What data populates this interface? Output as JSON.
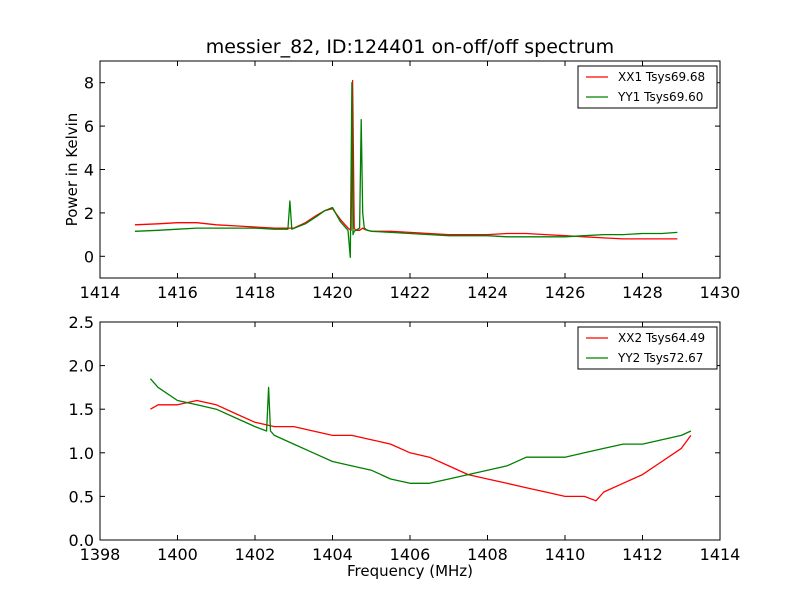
{
  "title": "messier_82, ID:124401 on-off/off spectrum",
  "chart_data": [
    {
      "type": "line",
      "title": "messier_82, ID:124401 on-off/off spectrum",
      "xlabel": "",
      "ylabel": "Power in Kelvin",
      "xlim": [
        1414,
        1430
      ],
      "ylim": [
        -1,
        9
      ],
      "xticks": [
        "1414",
        "1416",
        "1418",
        "1420",
        "1422",
        "1424",
        "1426",
        "1428",
        "1430"
      ],
      "yticks": [
        "0",
        "2",
        "4",
        "6",
        "8"
      ],
      "legend_position": "top-right",
      "series": [
        {
          "name": "XX1 Tsys69.68",
          "color": "#ff0000",
          "x": [
            1414.9,
            1415.5,
            1416.0,
            1416.5,
            1417.0,
            1417.5,
            1418.0,
            1418.5,
            1419.0,
            1419.3,
            1419.6,
            1419.8,
            1420.0,
            1420.2,
            1420.4,
            1420.48,
            1420.52,
            1420.56,
            1420.6,
            1420.7,
            1420.74,
            1420.78,
            1420.82,
            1420.9,
            1421.0,
            1421.5,
            1422.0,
            1422.5,
            1423.0,
            1423.5,
            1424.0,
            1424.5,
            1425.0,
            1425.5,
            1426.0,
            1426.5,
            1427.0,
            1427.5,
            1428.0,
            1428.5,
            1428.9
          ],
          "y": [
            1.45,
            1.5,
            1.55,
            1.55,
            1.45,
            1.4,
            1.35,
            1.3,
            1.3,
            1.55,
            1.9,
            2.1,
            2.2,
            1.7,
            1.3,
            1.2,
            8.1,
            1.3,
            1.2,
            1.2,
            1.25,
            1.3,
            1.25,
            1.2,
            1.15,
            1.15,
            1.1,
            1.05,
            1.0,
            1.0,
            1.0,
            1.05,
            1.05,
            1.0,
            0.95,
            0.9,
            0.85,
            0.8,
            0.8,
            0.8,
            0.8
          ]
        },
        {
          "name": "YY1 Tsys69.60",
          "color": "#008000",
          "x": [
            1414.9,
            1415.5,
            1416.0,
            1416.5,
            1417.0,
            1417.5,
            1418.0,
            1418.5,
            1418.85,
            1418.9,
            1418.95,
            1419.3,
            1419.6,
            1419.8,
            1420.0,
            1420.2,
            1420.4,
            1420.46,
            1420.5,
            1420.53,
            1420.56,
            1420.6,
            1420.7,
            1420.74,
            1420.78,
            1420.82,
            1420.9,
            1421.0,
            1421.5,
            1422.0,
            1422.5,
            1423.0,
            1423.5,
            1424.0,
            1424.5,
            1425.0,
            1425.5,
            1426.0,
            1426.5,
            1427.0,
            1427.5,
            1428.0,
            1428.5,
            1428.9
          ],
          "y": [
            1.15,
            1.2,
            1.25,
            1.3,
            1.3,
            1.3,
            1.3,
            1.25,
            1.25,
            2.55,
            1.25,
            1.5,
            1.85,
            2.1,
            2.25,
            1.6,
            1.2,
            -0.05,
            8.0,
            1.0,
            1.15,
            1.2,
            1.3,
            6.3,
            2.0,
            1.3,
            1.2,
            1.15,
            1.1,
            1.05,
            1.0,
            0.95,
            0.95,
            0.95,
            0.9,
            0.9,
            0.9,
            0.9,
            0.95,
            1.0,
            1.0,
            1.05,
            1.05,
            1.1
          ]
        }
      ]
    },
    {
      "type": "line",
      "title": "",
      "xlabel": "Frequency (MHz)",
      "ylabel": "",
      "xlim": [
        1398,
        1414
      ],
      "ylim": [
        0,
        2.5
      ],
      "xticks": [
        "1398",
        "1400",
        "1402",
        "1404",
        "1406",
        "1408",
        "1410",
        "1412",
        "1414"
      ],
      "yticks": [
        "0.0",
        "0.5",
        "1.0",
        "1.5",
        "2.0",
        "2.5"
      ],
      "legend_position": "top-right",
      "series": [
        {
          "name": "XX2 Tsys64.49",
          "color": "#ff0000",
          "x": [
            1399.3,
            1399.5,
            1400.0,
            1400.5,
            1401.0,
            1401.5,
            1402.0,
            1402.5,
            1403.0,
            1403.5,
            1404.0,
            1404.5,
            1405.0,
            1405.5,
            1406.0,
            1406.5,
            1407.0,
            1407.5,
            1408.0,
            1408.5,
            1409.0,
            1409.5,
            1410.0,
            1410.5,
            1410.8,
            1411.0,
            1411.5,
            1412.0,
            1412.5,
            1413.0,
            1413.25
          ],
          "y": [
            1.5,
            1.55,
            1.55,
            1.6,
            1.55,
            1.45,
            1.35,
            1.3,
            1.3,
            1.25,
            1.2,
            1.2,
            1.15,
            1.1,
            1.0,
            0.95,
            0.85,
            0.75,
            0.7,
            0.65,
            0.6,
            0.55,
            0.5,
            0.5,
            0.45,
            0.55,
            0.65,
            0.75,
            0.9,
            1.05,
            1.2
          ]
        },
        {
          "name": "YY2 Tsys72.67",
          "color": "#008000",
          "x": [
            1399.3,
            1399.5,
            1400.0,
            1400.5,
            1401.0,
            1401.5,
            1402.0,
            1402.3,
            1402.35,
            1402.4,
            1402.5,
            1403.0,
            1403.5,
            1404.0,
            1404.5,
            1405.0,
            1405.5,
            1406.0,
            1406.5,
            1407.0,
            1407.5,
            1408.0,
            1408.5,
            1409.0,
            1409.5,
            1410.0,
            1410.5,
            1411.0,
            1411.5,
            1412.0,
            1412.5,
            1413.0,
            1413.25
          ],
          "y": [
            1.85,
            1.75,
            1.6,
            1.55,
            1.5,
            1.4,
            1.3,
            1.25,
            1.75,
            1.25,
            1.2,
            1.1,
            1.0,
            0.9,
            0.85,
            0.8,
            0.7,
            0.65,
            0.65,
            0.7,
            0.75,
            0.8,
            0.85,
            0.95,
            0.95,
            0.95,
            1.0,
            1.05,
            1.1,
            1.1,
            1.15,
            1.2,
            1.25
          ]
        }
      ]
    }
  ]
}
